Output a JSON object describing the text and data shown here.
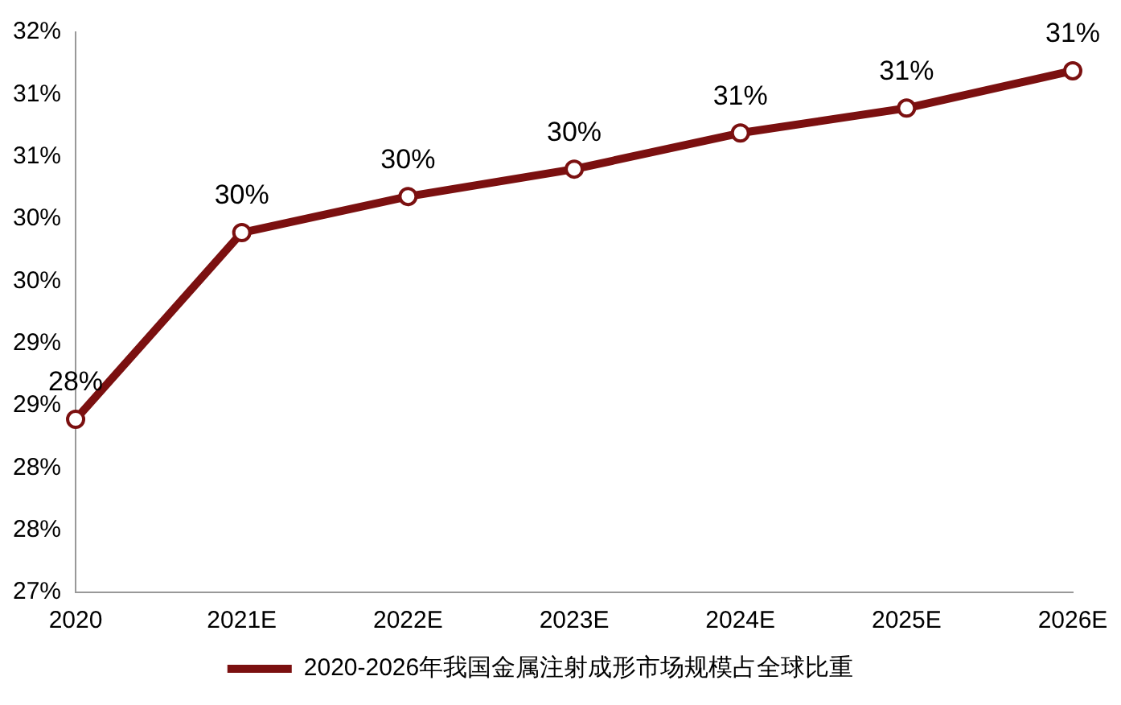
{
  "chart_data": {
    "type": "line",
    "categories": [
      "2020",
      "2021E",
      "2022E",
      "2023E",
      "2024E",
      "2025E",
      "2026E"
    ],
    "series": [
      {
        "name": "2020-2026年我国金属注射成形市场规模占全球比重",
        "color": "#7b1010",
        "values": [
          28.39,
          29.89,
          30.18,
          30.4,
          30.69,
          30.89,
          31.19
        ],
        "value_labels": [
          "28%",
          "30%",
          "30%",
          "30%",
          "31%",
          "31%",
          "31%"
        ]
      }
    ],
    "ylim": [
      27,
      31.5
    ],
    "yticks": [
      {
        "value": 27,
        "label": "27%"
      },
      {
        "value": 27.5,
        "label": "28%"
      },
      {
        "value": 28,
        "label": "28%"
      },
      {
        "value": 28.5,
        "label": "29%"
      },
      {
        "value": 29,
        "label": "29%"
      },
      {
        "value": 29.5,
        "label": "30%"
      },
      {
        "value": 30,
        "label": "30%"
      },
      {
        "value": 30.5,
        "label": "31%"
      },
      {
        "value": 31,
        "label": "31%"
      },
      {
        "value": 31.5,
        "label": "32%"
      }
    ],
    "grid": false,
    "legend": "bottom",
    "marker": "circle",
    "line_style": "solid"
  }
}
